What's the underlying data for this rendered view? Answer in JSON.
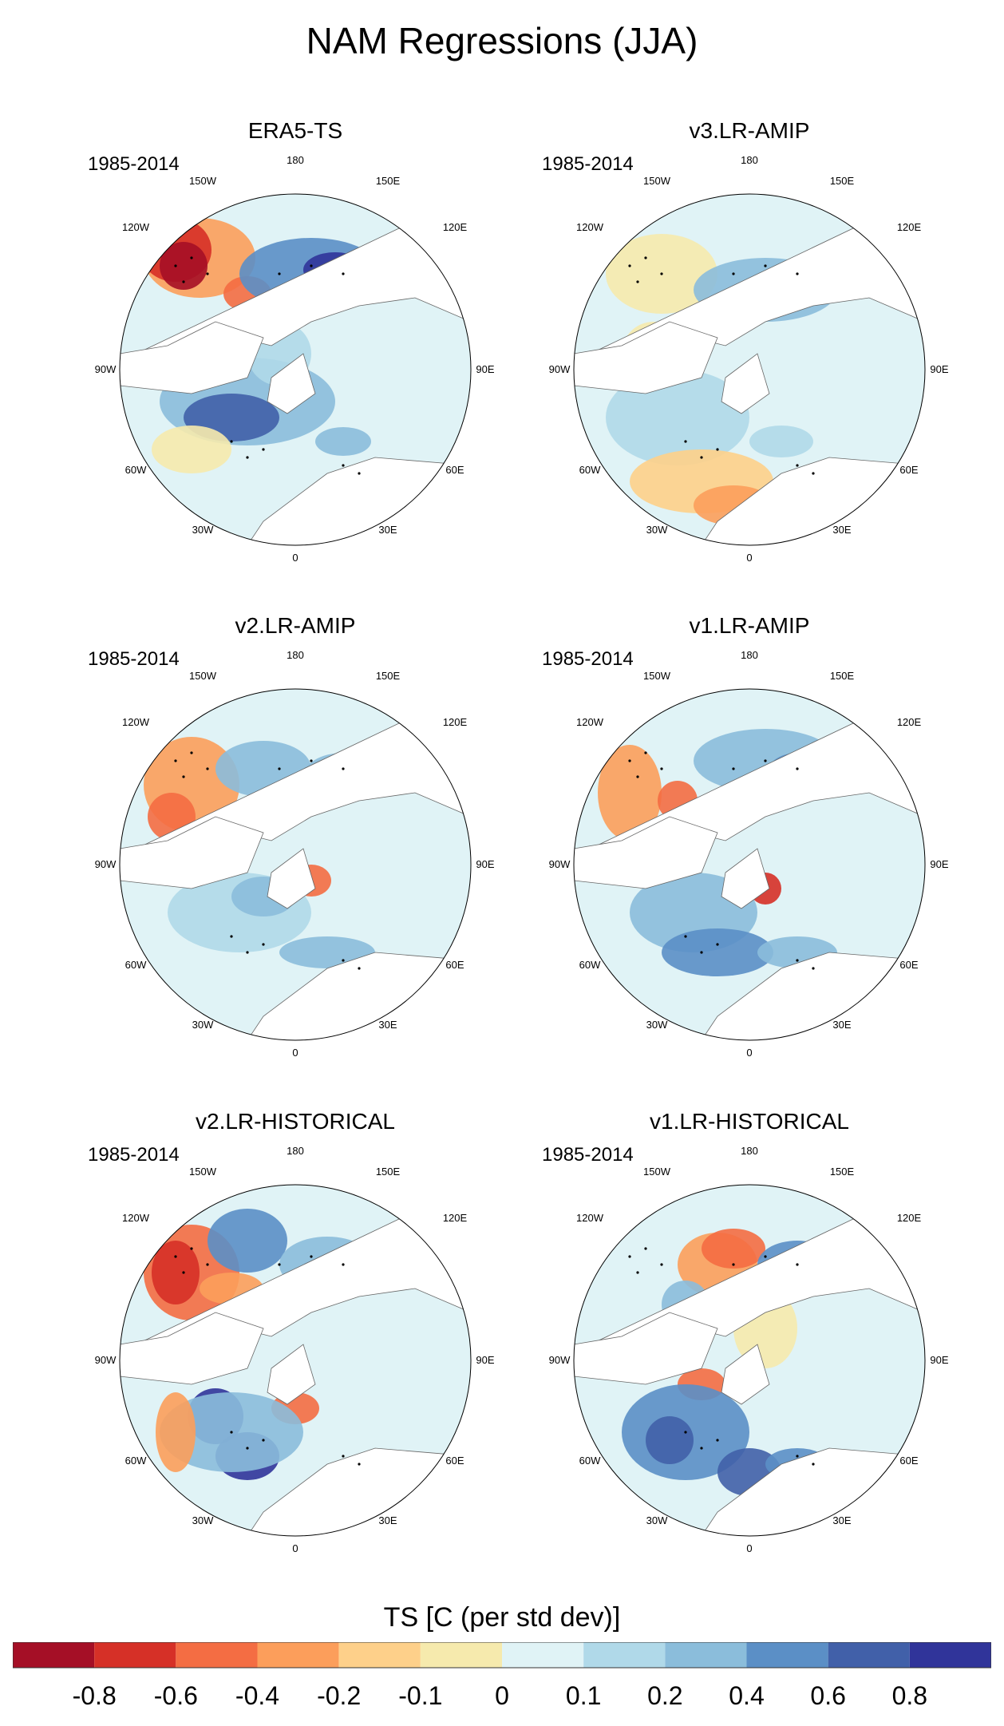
{
  "title": "NAM Regressions (JJA)",
  "panels": [
    {
      "title": "ERA5-TS",
      "period": "1985-2014"
    },
    {
      "title": "v3.LR-AMIP",
      "period": "1985-2014"
    },
    {
      "title": "v2.LR-AMIP",
      "period": "1985-2014"
    },
    {
      "title": "v1.LR-AMIP",
      "period": "1985-2014"
    },
    {
      "title": "v2.LR-HISTORICAL",
      "period": "1985-2014"
    },
    {
      "title": "v1.LR-HISTORICAL",
      "period": "1985-2014"
    }
  ],
  "longitude_labels": {
    "lon180": "180",
    "lon150w": "150W",
    "lon150e": "150E",
    "lon120w": "120W",
    "lon120e": "120E",
    "lon90w": "90W",
    "lon90e": "90E",
    "lon60w": "60W",
    "lon60e": "60E",
    "lon30w": "30W",
    "lon30e": "30E",
    "lon0": "0"
  },
  "colorbar": {
    "title": "TS [C (per std dev)]",
    "ticks": [
      "-0.8",
      "-0.6",
      "-0.4",
      "-0.2",
      "-0.1",
      "0",
      "0.1",
      "0.2",
      "0.4",
      "0.6",
      "0.8"
    ],
    "colors": [
      "#a50f26",
      "#d63027",
      "#f46d43",
      "#fc9e5b",
      "#fed08a",
      "#f6eaad",
      "#e0f3f6",
      "#b0d9e9",
      "#8bbddb",
      "#5b8fc6",
      "#4160a9",
      "#30349a"
    ]
  }
}
